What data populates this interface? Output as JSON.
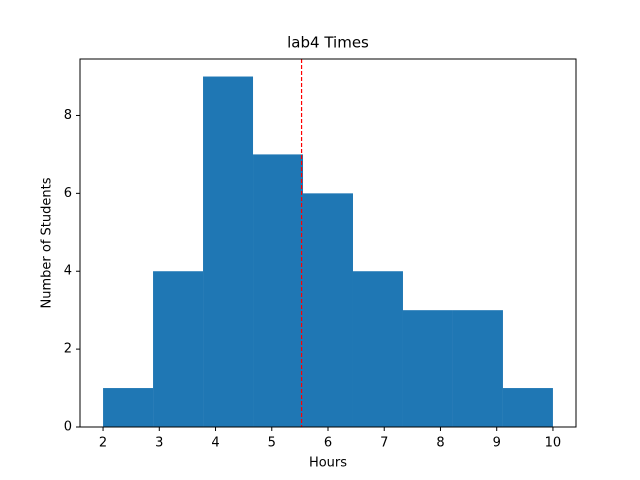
{
  "chart_data": {
    "type": "histogram",
    "title": "lab4 Times",
    "x_label": "Hours",
    "y_label": "Number of Students",
    "bins": [
      2,
      2.8889,
      3.7778,
      4.6667,
      5.5556,
      6.4444,
      7.3333,
      8.2222,
      9.1111,
      10
    ],
    "values": [
      1,
      4,
      9,
      7,
      6,
      4,
      3,
      3,
      1
    ],
    "color": "#1f77b4",
    "vline": {
      "value": 5.53,
      "color": "#ff0000"
    },
    "xlim": [
      1.59,
      10.41
    ],
    "xticks": [
      2,
      3,
      4,
      5,
      6,
      7,
      8,
      9,
      10
    ],
    "ylim": [
      0,
      9.45
    ],
    "yticks": [
      0,
      2,
      4,
      6,
      8
    ]
  }
}
